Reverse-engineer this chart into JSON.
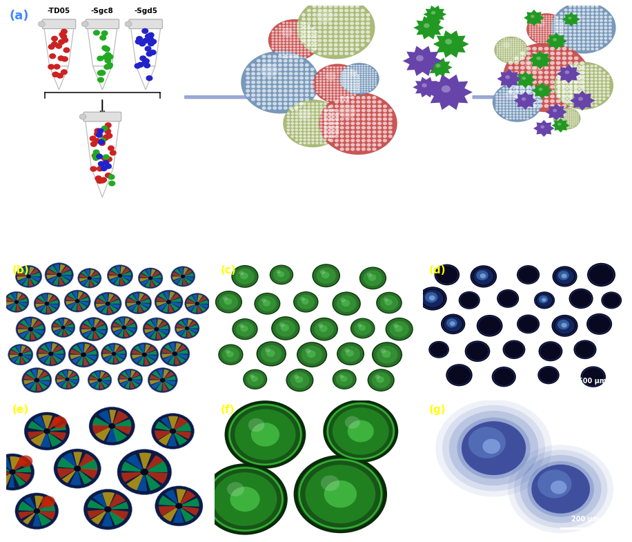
{
  "panel_a_label": "(a)",
  "panel_b_label": "(b)",
  "panel_c_label": "(c)",
  "panel_d_label": "(d)",
  "panel_e_label": "(e)",
  "panel_f_label": "(f)",
  "panel_g_label": "(g)",
  "tube_labels": [
    "-TD05",
    "-Sgc8",
    "-Sgd5"
  ],
  "tube_colors": [
    "#cc2222",
    "#22aa22",
    "#2222cc"
  ],
  "scale_bar_500": "500 μm",
  "scale_bar_200": "200 μm",
  "bg_color": "#ffffff",
  "label_color_blue": "#4488ff",
  "sphere_red": "#cc5555",
  "sphere_green": "#aabb77",
  "sphere_blue": "#7799bb",
  "cell_green": "#229922",
  "cell_purple": "#6644aa",
  "arrow_color": "#7788cc"
}
